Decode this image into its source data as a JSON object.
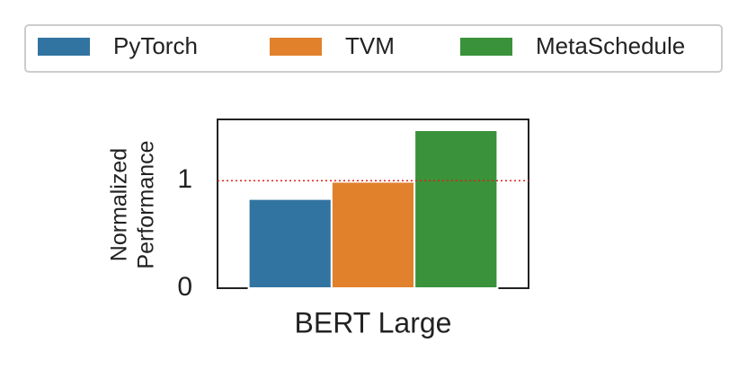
{
  "chart_data": {
    "type": "bar",
    "categories": [
      "BERT Large"
    ],
    "series": [
      {
        "name": "PyTorch",
        "color": "#3274a1",
        "values": [
          0.83
        ]
      },
      {
        "name": "TVM",
        "color": "#e1812c",
        "values": [
          0.99
        ]
      },
      {
        "name": "MetaSchedule",
        "color": "#3a923a",
        "values": [
          1.47
        ]
      }
    ],
    "ylabel": [
      "Normalized",
      "Performance"
    ],
    "ylim": [
      0,
      1.57
    ],
    "yticks": [
      0,
      1
    ],
    "reference_line": {
      "value": 1,
      "color": "#e0201b"
    },
    "legend": "top",
    "grid": false
  }
}
